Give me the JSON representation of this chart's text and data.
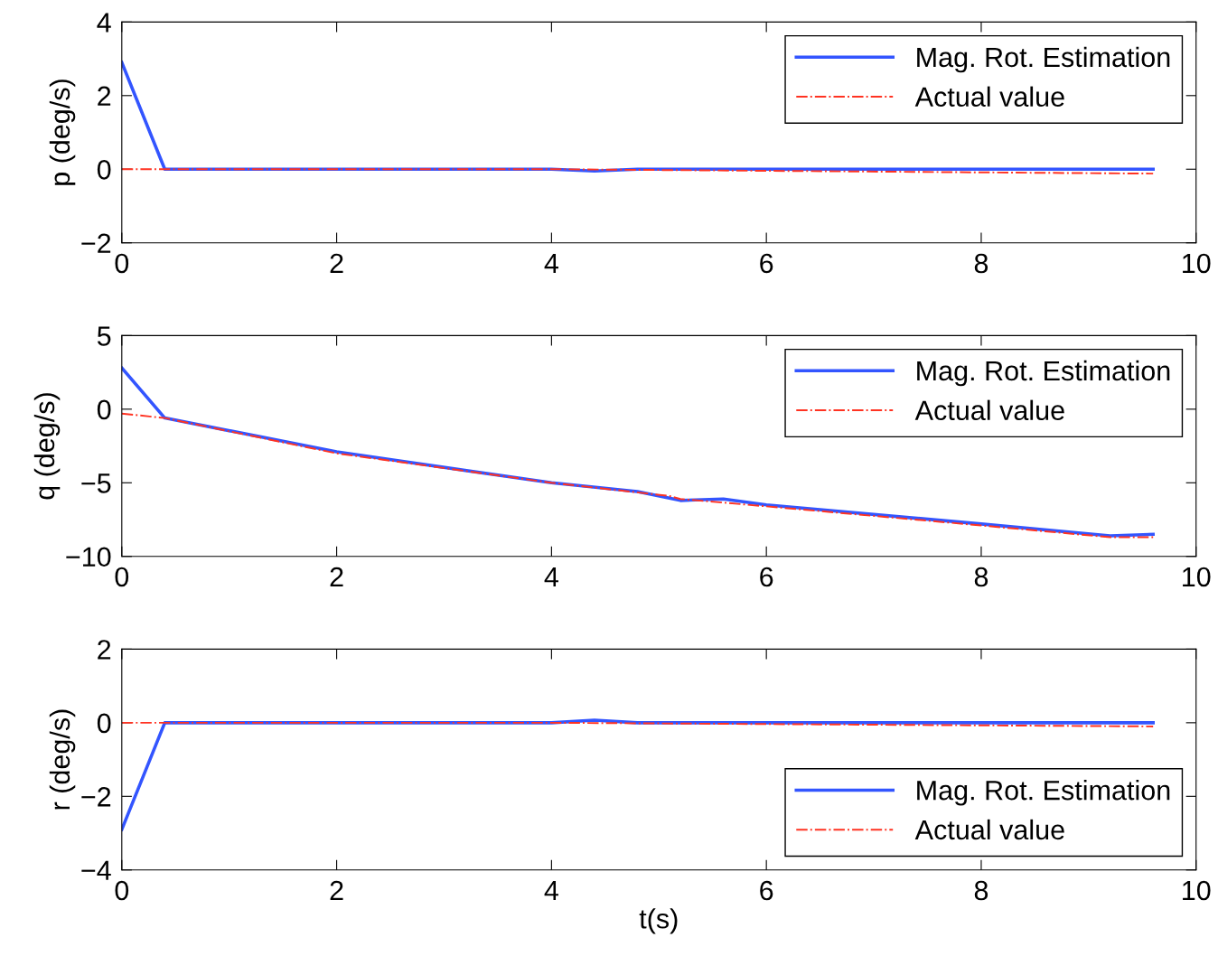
{
  "chart_data": [
    {
      "type": "line",
      "ylabel": "p (deg/s)",
      "xlim": [
        0,
        10
      ],
      "xticks": [
        0,
        2,
        4,
        6,
        8,
        10
      ],
      "ylim": [
        -2,
        4
      ],
      "yticks": [
        {
          "value": -2,
          "label": "−2"
        },
        0,
        2,
        4
      ],
      "grid": false,
      "legend": "top right",
      "marker": "none",
      "series": [
        {
          "name": "Mag. Rot. Estimation",
          "color": "#3355ff",
          "line_style": "solid",
          "x": [
            0,
            0.4,
            4,
            4.4,
            4.8,
            9.6
          ],
          "values": [
            2.9,
            0,
            0,
            -0.05,
            0,
            0
          ]
        },
        {
          "name": "Actual value",
          "color": "#ff3322",
          "line_style": "dashdot",
          "x": [
            0,
            4,
            9.6
          ],
          "values": [
            0,
            0,
            -0.12
          ]
        }
      ]
    },
    {
      "type": "line",
      "ylabel": "q (deg/s)",
      "xlim": [
        0,
        10
      ],
      "xticks": [
        0,
        2,
        4,
        6,
        8,
        10
      ],
      "ylim": [
        -10,
        5
      ],
      "yticks": [
        {
          "value": -10,
          "label": "−10"
        },
        {
          "value": -5,
          "label": "−5"
        },
        0,
        5
      ],
      "grid": false,
      "legend": "top right",
      "marker": "none",
      "series": [
        {
          "name": "Mag. Rot. Estimation",
          "color": "#3355ff",
          "line_style": "solid",
          "x": [
            0,
            0.4,
            2,
            4,
            4.8,
            5.2,
            5.6,
            6,
            8,
            9.2,
            9.6
          ],
          "values": [
            2.8,
            -0.6,
            -2.9,
            -5.0,
            -5.6,
            -6.2,
            -6.1,
            -6.5,
            -7.8,
            -8.6,
            -8.5
          ]
        },
        {
          "name": "Actual value",
          "color": "#ff3322",
          "line_style": "dashdot",
          "x": [
            0,
            0.4,
            2,
            4,
            5.1,
            5.2,
            6,
            8,
            9.2,
            9.6
          ],
          "values": [
            -0.3,
            -0.6,
            -3.0,
            -5.0,
            -5.9,
            -6.1,
            -6.6,
            -7.9,
            -8.7,
            -8.7
          ]
        }
      ]
    },
    {
      "type": "line",
      "ylabel": "r (deg/s)",
      "xlabel": "t(s)",
      "xlim": [
        0,
        10
      ],
      "xticks": [
        0,
        2,
        4,
        6,
        8,
        10
      ],
      "ylim": [
        -4,
        2
      ],
      "yticks": [
        {
          "value": -4,
          "label": "−4"
        },
        {
          "value": -2,
          "label": "−2"
        },
        0,
        2
      ],
      "grid": false,
      "legend": "bottom right",
      "marker": "none",
      "series": [
        {
          "name": "Mag. Rot. Estimation",
          "color": "#3355ff",
          "line_style": "solid",
          "x": [
            0,
            0.4,
            4,
            4.4,
            4.8,
            9.6
          ],
          "values": [
            -2.9,
            0,
            0,
            0.07,
            0,
            0
          ]
        },
        {
          "name": "Actual value",
          "color": "#ff3322",
          "line_style": "dashdot",
          "x": [
            0,
            4,
            9.6
          ],
          "values": [
            0,
            0,
            -0.1
          ]
        }
      ]
    }
  ]
}
